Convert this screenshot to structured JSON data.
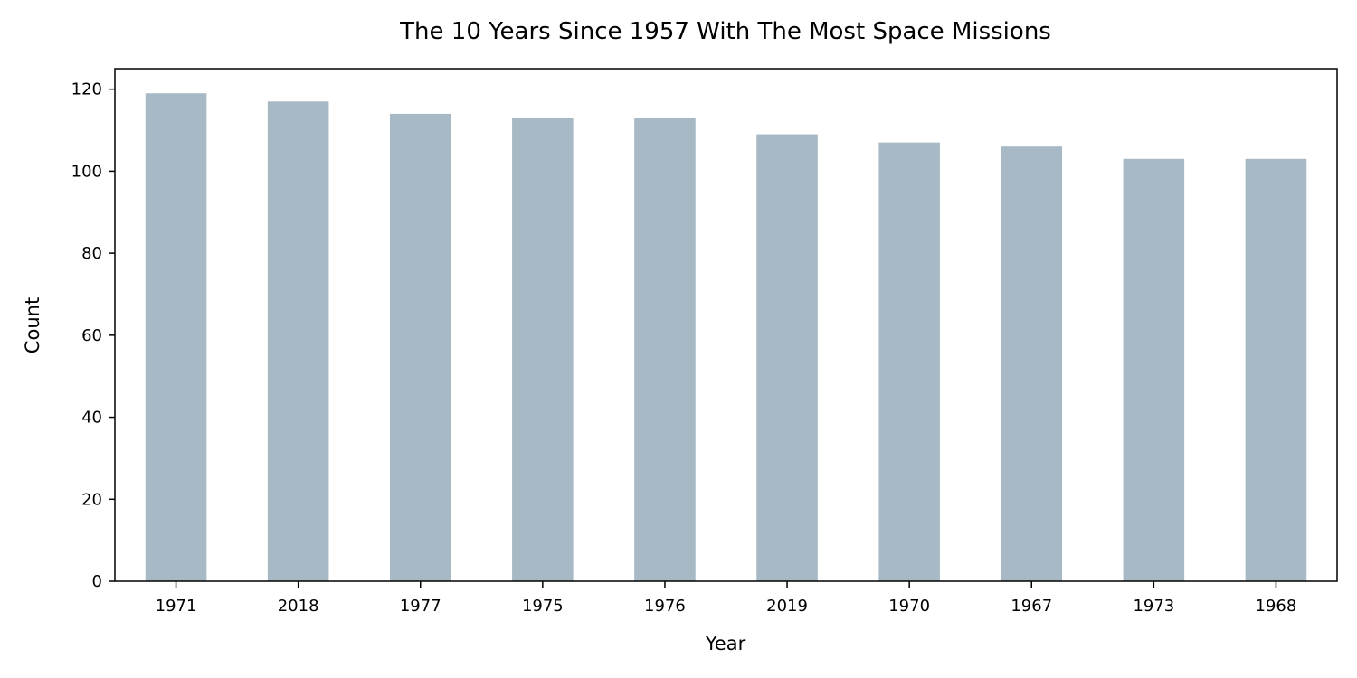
{
  "chart_data": {
    "type": "bar",
    "title": "The 10 Years Since 1957 With The Most Space Missions",
    "xlabel": "Year",
    "ylabel": "Count",
    "categories": [
      "1971",
      "2018",
      "1977",
      "1975",
      "1976",
      "2019",
      "1970",
      "1967",
      "1973",
      "1968"
    ],
    "values": [
      119,
      117,
      114,
      113,
      113,
      109,
      107,
      106,
      103,
      103
    ],
    "ylim": [
      0,
      125
    ],
    "yticks": [
      0,
      20,
      40,
      60,
      80,
      100,
      120
    ],
    "grid": false,
    "legend": "none",
    "bar_color": "#a7b9c4"
  }
}
